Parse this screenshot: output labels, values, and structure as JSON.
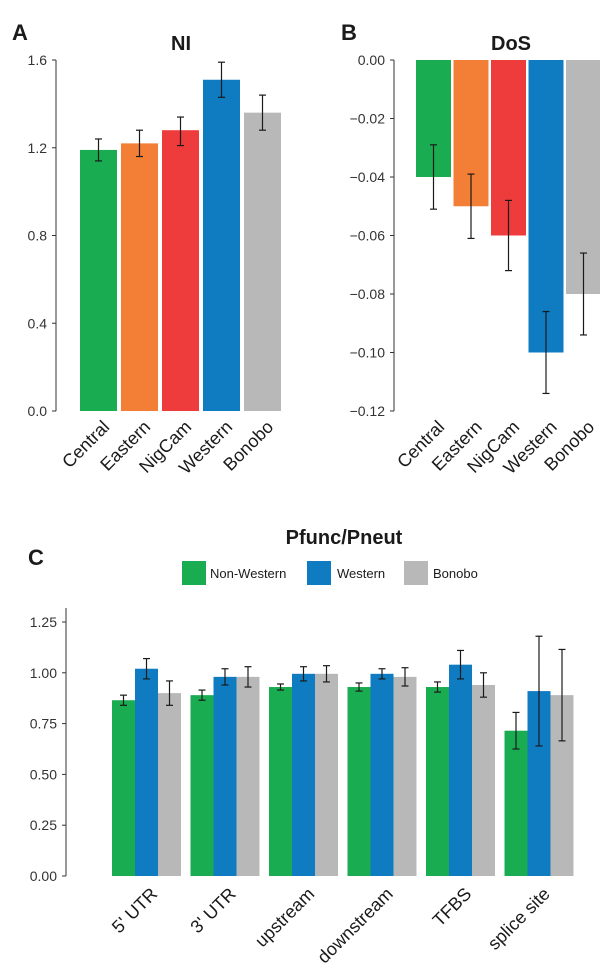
{
  "colors": {
    "green": "#1aac50",
    "orange": "#f37f36",
    "red": "#ee3b3b",
    "blue": "#0f7bc1",
    "grey": "#b8b8b9"
  },
  "chart_data": [
    {
      "panel": "A",
      "type": "bar",
      "title": "NI",
      "categories": [
        "Central",
        "Eastern",
        "NigCam",
        "Western",
        "Bonobo"
      ],
      "values": [
        1.19,
        1.22,
        1.28,
        1.51,
        1.36
      ],
      "errors": [
        [
          1.14,
          1.24
        ],
        [
          1.16,
          1.28
        ],
        [
          1.21,
          1.34
        ],
        [
          1.43,
          1.59
        ],
        [
          1.28,
          1.44
        ]
      ],
      "bar_colors": [
        "green",
        "orange",
        "red",
        "blue",
        "grey"
      ],
      "ylim": [
        0,
        1.6
      ],
      "yticks": [
        "0.0",
        "0.4",
        "0.8",
        "1.2",
        "1.6"
      ],
      "grid": false
    },
    {
      "panel": "B",
      "type": "bar",
      "title": "DoS",
      "categories": [
        "Central",
        "Eastern",
        "NigCam",
        "Western",
        "Bonobo"
      ],
      "values": [
        -0.04,
        -0.05,
        -0.06,
        -0.1,
        -0.08
      ],
      "errors": [
        [
          -0.051,
          -0.029
        ],
        [
          -0.061,
          -0.039
        ],
        [
          -0.072,
          -0.048
        ],
        [
          -0.114,
          -0.086
        ],
        [
          -0.094,
          -0.066
        ]
      ],
      "bar_colors": [
        "green",
        "orange",
        "red",
        "blue",
        "grey"
      ],
      "ylim": [
        -0.12,
        0
      ],
      "yticks": [
        "0.00",
        "−0.02",
        "−0.04",
        "−0.06",
        "−0.08",
        "−0.10",
        "−0.12"
      ],
      "grid": false
    },
    {
      "panel": "C",
      "type": "bar",
      "title": "Pfunc/Pneut",
      "categories": [
        "5' UTR",
        "3' UTR",
        "upstream",
        "downstream",
        "TFBS",
        "splice site"
      ],
      "series": [
        {
          "name": "Non-Western",
          "color": "green",
          "values": [
            0.865,
            0.89,
            0.93,
            0.93,
            0.93,
            0.715
          ],
          "errors": [
            [
              0.84,
              0.89
            ],
            [
              0.865,
              0.915
            ],
            [
              0.915,
              0.945
            ],
            [
              0.91,
              0.95
            ],
            [
              0.905,
              0.955
            ],
            [
              0.625,
              0.805
            ]
          ]
        },
        {
          "name": "Western",
          "color": "blue",
          "values": [
            1.02,
            0.98,
            0.995,
            0.995,
            1.04,
            0.91
          ],
          "errors": [
            [
              0.97,
              1.07
            ],
            [
              0.94,
              1.02
            ],
            [
              0.96,
              1.03
            ],
            [
              0.97,
              1.02
            ],
            [
              0.97,
              1.11
            ],
            [
              0.64,
              1.18
            ]
          ]
        },
        {
          "name": "Bonobo",
          "color": "grey",
          "values": [
            0.9,
            0.98,
            0.995,
            0.98,
            0.94,
            0.89
          ],
          "errors": [
            [
              0.84,
              0.96
            ],
            [
              0.93,
              1.03
            ],
            [
              0.955,
              1.035
            ],
            [
              0.935,
              1.025
            ],
            [
              0.88,
              1.0
            ],
            [
              0.665,
              1.115
            ]
          ]
        }
      ],
      "ylim": [
        0,
        1.25
      ],
      "yticks": [
        "0.00",
        "0.25",
        "0.50",
        "0.75",
        "1.00",
        "1.25"
      ],
      "legend": "top",
      "grid": false
    }
  ]
}
